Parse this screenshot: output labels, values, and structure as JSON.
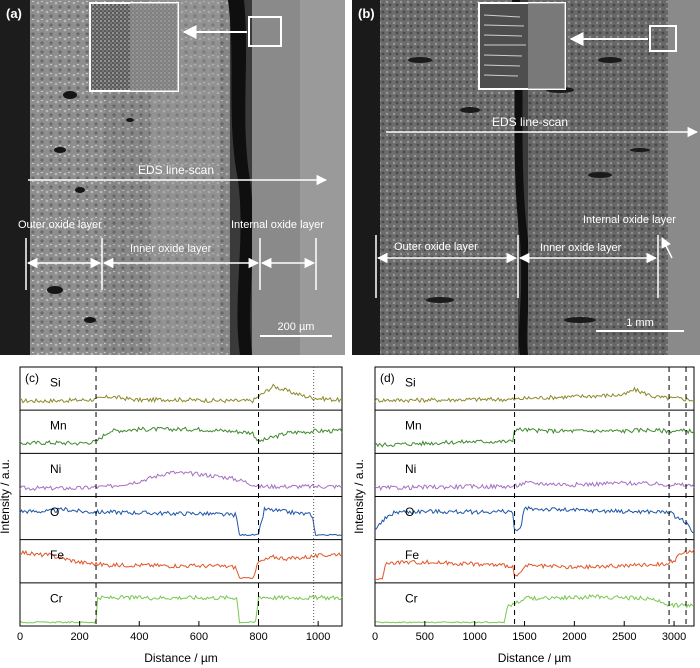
{
  "micrographs": {
    "a": {
      "label": "(a)",
      "eds_label": "EDS line-scan",
      "layers": [
        "Outer oxide layer",
        "Inner oxide layer",
        "Internal oxide layer"
      ],
      "scale_bar": "200 µm"
    },
    "b": {
      "label": "(b)",
      "eds_label": "EDS line-scan",
      "layers": [
        "Outer oxide layer",
        "Inner oxide layer",
        "Internal oxide layer"
      ],
      "scale_bar": "1 mm"
    }
  },
  "colors": {
    "Si": "#8c8a2a",
    "Mn": "#3f8a2e",
    "Ni": "#a470c4",
    "O": "#1f56a8",
    "Fe": "#e0562a",
    "Cr": "#78c850"
  },
  "chart_data": [
    {
      "panel": "(c)",
      "type": "line",
      "xlabel": "Distance / µm",
      "ylabel": "Intensity / a.u.",
      "xlim": [
        0,
        1080
      ],
      "xticks": [
        0,
        200,
        400,
        600,
        800,
        1000
      ],
      "boundaries": [
        255,
        800
      ],
      "dotted_boundary": [
        985
      ],
      "series": [
        {
          "name": "Si",
          "x": [
            0,
            100,
            200,
            255,
            300,
            400,
            500,
            600,
            700,
            780,
            800,
            850,
            900,
            960,
            1000,
            1080
          ],
          "values": [
            0.18,
            0.18,
            0.2,
            0.22,
            0.3,
            0.2,
            0.22,
            0.2,
            0.18,
            0.18,
            0.3,
            0.6,
            0.45,
            0.3,
            0.25,
            0.2
          ]
        },
        {
          "name": "Mn",
          "x": [
            0,
            100,
            200,
            255,
            300,
            400,
            500,
            600,
            700,
            780,
            800,
            900,
            1000,
            1080
          ],
          "values": [
            0.2,
            0.22,
            0.2,
            0.25,
            0.55,
            0.6,
            0.6,
            0.6,
            0.55,
            0.5,
            0.25,
            0.5,
            0.55,
            0.55
          ]
        },
        {
          "name": "Ni",
          "x": [
            0,
            100,
            200,
            255,
            300,
            400,
            500,
            600,
            700,
            750,
            800,
            900,
            1000,
            1080
          ],
          "values": [
            0.15,
            0.15,
            0.15,
            0.18,
            0.2,
            0.35,
            0.6,
            0.55,
            0.45,
            0.35,
            0.2,
            0.2,
            0.2,
            0.2
          ]
        },
        {
          "name": "O",
          "x": [
            0,
            100,
            150,
            200,
            255,
            300,
            400,
            500,
            600,
            700,
            725,
            735,
            800,
            820,
            900,
            980,
            990,
            1080
          ],
          "values": [
            0.72,
            0.72,
            0.78,
            0.72,
            0.7,
            0.7,
            0.68,
            0.66,
            0.66,
            0.62,
            0.62,
            0.05,
            0.05,
            0.78,
            0.7,
            0.62,
            0.05,
            0.05
          ]
        },
        {
          "name": "Fe",
          "x": [
            0,
            50,
            100,
            150,
            200,
            255,
            300,
            400,
            500,
            600,
            700,
            725,
            735,
            780,
            800,
            850,
            900,
            1000,
            1080
          ],
          "values": [
            0.8,
            0.72,
            0.7,
            0.6,
            0.5,
            0.45,
            0.42,
            0.42,
            0.4,
            0.4,
            0.38,
            0.35,
            0.05,
            0.05,
            0.5,
            0.65,
            0.6,
            0.68,
            0.75
          ]
        },
        {
          "name": "Cr",
          "x": [
            0,
            255,
            258,
            300,
            400,
            500,
            600,
            700,
            730,
            733,
            790,
            800,
            850,
            900,
            1000,
            1080
          ],
          "values": [
            0.02,
            0.02,
            0.7,
            0.72,
            0.72,
            0.72,
            0.72,
            0.72,
            0.72,
            0.02,
            0.02,
            0.75,
            0.72,
            0.72,
            0.72,
            0.72
          ]
        }
      ]
    },
    {
      "panel": "(d)",
      "type": "line",
      "xlabel": "Distance / µm",
      "ylabel": "Intensity / a.u.",
      "xlim": [
        0,
        3200
      ],
      "xticks": [
        0,
        500,
        1000,
        1500,
        2000,
        2500,
        3000
      ],
      "boundaries": [
        1400,
        2950,
        3120
      ],
      "series": [
        {
          "name": "Si",
          "x": [
            0,
            500,
            1000,
            1400,
            1500,
            2000,
            2500,
            2600,
            2700,
            2800,
            2950,
            3050,
            3200
          ],
          "values": [
            0.2,
            0.2,
            0.22,
            0.22,
            0.25,
            0.3,
            0.35,
            0.5,
            0.4,
            0.3,
            0.25,
            0.25,
            0.2
          ]
        },
        {
          "name": "Mn",
          "x": [
            0,
            500,
            1000,
            1380,
            1400,
            1700,
            2000,
            2500,
            2700,
            2950,
            3200
          ],
          "values": [
            0.15,
            0.2,
            0.25,
            0.25,
            0.6,
            0.55,
            0.55,
            0.55,
            0.58,
            0.55,
            0.55
          ]
        },
        {
          "name": "Ni",
          "x": [
            0,
            500,
            1000,
            1400,
            1500,
            2000,
            2500,
            3000,
            3200
          ],
          "values": [
            0.15,
            0.18,
            0.2,
            0.2,
            0.3,
            0.25,
            0.3,
            0.25,
            0.22
          ]
        },
        {
          "name": "O",
          "x": [
            0,
            100,
            200,
            500,
            1000,
            1380,
            1400,
            1450,
            1500,
            2000,
            2500,
            2950,
            3000,
            3100,
            3150,
            3200
          ],
          "values": [
            0.2,
            0.5,
            0.7,
            0.72,
            0.7,
            0.72,
            0.15,
            0.15,
            0.8,
            0.75,
            0.72,
            0.7,
            0.6,
            0.45,
            0.25,
            0.1
          ]
        },
        {
          "name": "Fe",
          "x": [
            0,
            80,
            100,
            200,
            500,
            1000,
            1380,
            1400,
            1450,
            1500,
            2000,
            2500,
            2900,
            3000,
            3100,
            3200
          ],
          "values": [
            0.02,
            0.02,
            0.45,
            0.5,
            0.5,
            0.45,
            0.4,
            0.1,
            0.12,
            0.4,
            0.35,
            0.4,
            0.45,
            0.55,
            0.8,
            0.82
          ]
        },
        {
          "name": "Cr",
          "x": [
            0,
            1300,
            1330,
            1400,
            1500,
            1800,
            2000,
            2200,
            2500,
            2700,
            2900,
            2950,
            3200
          ],
          "values": [
            0.02,
            0.02,
            0.5,
            0.55,
            0.7,
            0.72,
            0.72,
            0.75,
            0.72,
            0.7,
            0.6,
            0.5,
            0.5
          ]
        }
      ]
    }
  ]
}
